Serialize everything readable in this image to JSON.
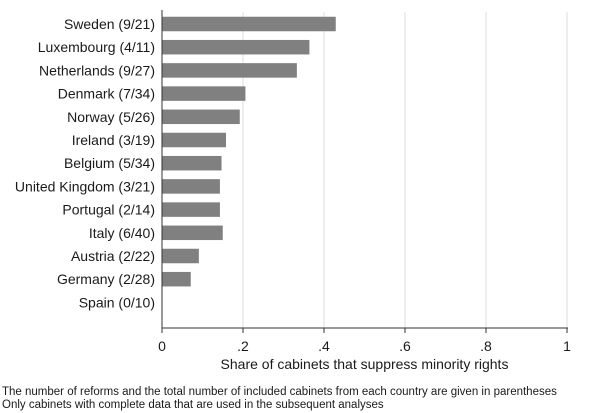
{
  "chart_data": {
    "type": "bar",
    "orientation": "horizontal",
    "categories": [
      "Sweden (9/21)",
      "Luxembourg (4/11)",
      "Netherlands (9/27)",
      "Denmark (7/34)",
      "Norway (5/26)",
      "Ireland (3/19)",
      "Belgium (5/34)",
      "United Kingdom (3/21)",
      "Portugal (2/14)",
      "Italy (6/40)",
      "Austria (2/22)",
      "Germany (2/28)",
      "Spain (0/10)"
    ],
    "values": [
      0.429,
      0.364,
      0.333,
      0.206,
      0.192,
      0.158,
      0.147,
      0.143,
      0.143,
      0.15,
      0.091,
      0.071,
      0.0
    ],
    "xlabel": "Share of cabinets that suppress minority rights",
    "ylabel": "",
    "title": "",
    "xlim": [
      0,
      1
    ],
    "xticks": [
      0,
      0.2,
      0.4,
      0.6,
      0.8,
      1
    ],
    "xtick_labels": [
      "0",
      ".2",
      ".4",
      ".6",
      ".8",
      "1"
    ],
    "grid": "vertical",
    "bar_color": "#808080",
    "grid_color": "#dcdcdc"
  },
  "notes": [
    "The number of reforms and the total number of included cabinets from each country are given in parentheses",
    "Only cabinets with complete data that are used in the subsequent analyses"
  ]
}
